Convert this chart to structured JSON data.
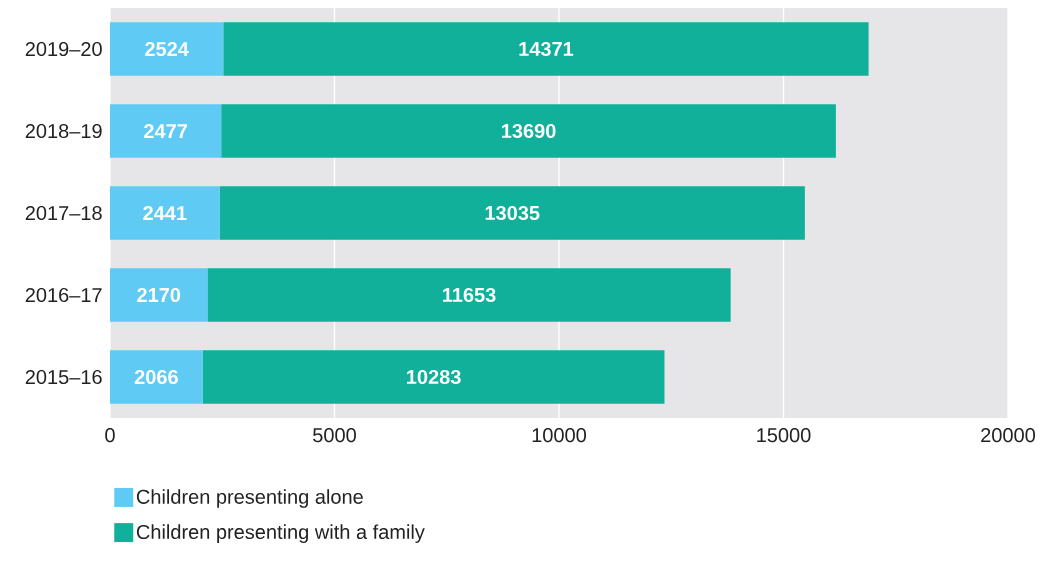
{
  "chart_data": {
    "type": "bar",
    "orientation": "horizontal",
    "stacked": true,
    "categories": [
      "2019–20",
      "2018–19",
      "2017–18",
      "2016–17",
      "2015–16"
    ],
    "series": [
      {
        "name": "Children presenting alone",
        "color": "#5fcbf5",
        "values": [
          2524,
          2477,
          2441,
          2170,
          2066
        ]
      },
      {
        "name": "Children presenting with a family",
        "color": "#10b09b",
        "values": [
          14371,
          13690,
          13035,
          11653,
          10283
        ]
      }
    ],
    "xlim": [
      0,
      20000
    ],
    "xticks": [
      0,
      5000,
      10000,
      15000,
      20000
    ],
    "grid": "x",
    "legend": "bottom left",
    "data_labels": true
  }
}
